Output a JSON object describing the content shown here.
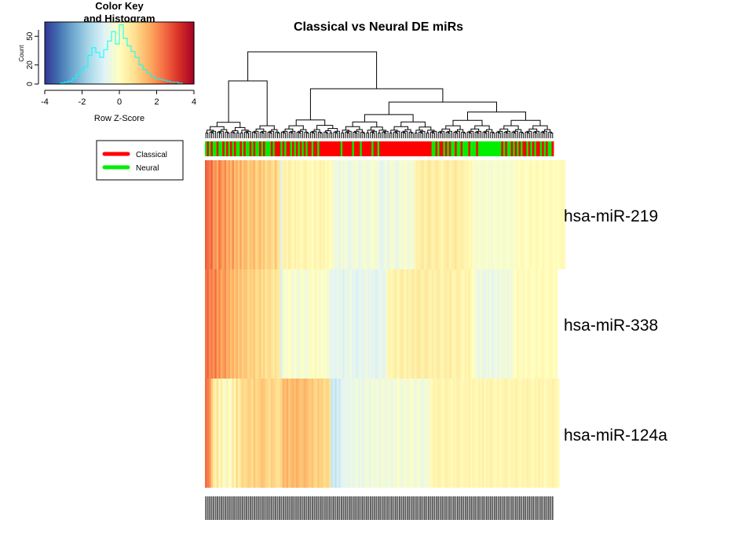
{
  "chart_data": {
    "type": "heatmap",
    "title": "Classical vs Neural DE miRs",
    "rows": [
      "hsa-miR-219",
      "hsa-miR-338",
      "hsa-miR-124a"
    ],
    "legend": {
      "position": "top-left",
      "entries": [
        {
          "label": "Classical",
          "color": "#ff0000"
        },
        {
          "label": "Neural",
          "color": "#00ee00"
        }
      ]
    },
    "color_key": {
      "title_line1": "Color Key",
      "title_line2": "and Histogram",
      "xlabel": "Row Z-Score",
      "ylabel": "Count",
      "xlim": [
        -4,
        4
      ],
      "x_ticks": [
        "-4",
        "-2",
        "0",
        "2",
        "4"
      ],
      "y_ticks": [
        "0",
        "20",
        "50"
      ],
      "palette": [
        "#313695",
        "#4575b4",
        "#74add1",
        "#abd9e9",
        "#e0f3f8",
        "#ffffbf",
        "#fee090",
        "#fdae61",
        "#f46d43",
        "#d73027",
        "#a50026"
      ],
      "histogram_color": "#00ffff",
      "histogram": [
        0,
        0,
        0,
        0,
        1,
        2,
        3,
        6,
        10,
        15,
        18,
        30,
        38,
        33,
        28,
        36,
        45,
        55,
        42,
        62,
        48,
        40,
        34,
        28,
        20,
        15,
        11,
        8,
        6,
        5,
        4,
        3,
        2,
        2,
        1,
        0,
        0,
        0
      ]
    },
    "column_groups": [
      "Neural",
      "Classical",
      "Neural",
      "Classical",
      "Neural",
      "Neural",
      "Classical",
      "Neural",
      "Neural",
      "Classical",
      "Neural",
      "Classical",
      "Neural",
      "Classical",
      "Neural",
      "Classical",
      "Neural",
      "Neural",
      "Classical",
      "Neural",
      "Classical",
      "Neural",
      "Neural",
      "Classical",
      "Neural",
      "Classical",
      "Neural",
      "Neural",
      "Classical",
      "Neural",
      "Classical",
      "Neural",
      "Neural",
      "Neural",
      "Classical",
      "Neural",
      "Classical",
      "Classical",
      "Classical",
      "Neural",
      "Classical",
      "Neural",
      "Classical",
      "Classical",
      "Neural",
      "Classical",
      "Neural",
      "Classical",
      "Neural",
      "Classical",
      "Neural",
      "Classical",
      "Neural",
      "Classical",
      "Classical",
      "Neural",
      "Classical",
      "Classical",
      "Neural",
      "Classical",
      "Classical",
      "Classical",
      "Classical",
      "Classical",
      "Classical",
      "Classical",
      "Classical",
      "Classical",
      "Classical",
      "Classical",
      "Neural",
      "Classical",
      "Classical",
      "Classical",
      "Classical",
      "Classical",
      "Neural",
      "Classical",
      "Classical",
      "Classical",
      "Neural",
      "Classical",
      "Classical",
      "Classical",
      "Classical",
      "Classical",
      "Neural",
      "Classical",
      "Classical",
      "Neural",
      "Classical",
      "Classical",
      "Classical",
      "Classical",
      "Classical",
      "Classical",
      "Classical",
      "Classical",
      "Classical",
      "Classical",
      "Classical",
      "Classical",
      "Classical",
      "Classical",
      "Classical",
      "Classical",
      "Classical",
      "Classical",
      "Classical",
      "Classical",
      "Classical",
      "Classical",
      "Classical",
      "Classical",
      "Classical",
      "Classical",
      "Classical",
      "Neural",
      "Neural",
      "Classical",
      "Neural",
      "Classical",
      "Classical",
      "Neural",
      "Classical",
      "Neural",
      "Classical",
      "Neural",
      "Neural",
      "Classical",
      "Neural",
      "Neural",
      "Classical",
      "Neural",
      "Neural",
      "Neural",
      "Classical",
      "Neural",
      "Neural",
      "Neural",
      "Classical",
      "Neural",
      "Neural",
      "Neural",
      "Neural",
      "Neural",
      "Neural",
      "Neural",
      "Neural",
      "Neural",
      "Neural",
      "Neural",
      "Neural",
      "Classical",
      "Neural",
      "Classical",
      "Neural",
      "Neural",
      "Classical",
      "Neural",
      "Classical",
      "Neural",
      "Classical",
      "Neural",
      "Classical",
      "Classical",
      "Neural",
      "Classical",
      "Neural",
      "Classical",
      "Neural",
      "Classical",
      "Classical",
      "Neural",
      "Classical",
      "Neural",
      "Classical",
      "Neural",
      "Neural",
      "Classical"
    ],
    "z_scores": [
      [
        2.6,
        2.4,
        2.2,
        2.5,
        1.8,
        2.0,
        1.6,
        2.3,
        1.9,
        1.7,
        2.1,
        1.5,
        1.8,
        1.4,
        2.0,
        1.3,
        1.6,
        1.2,
        1.7,
        1.1,
        1.5,
        1.4,
        1.0,
        1.3,
        1.2,
        1.5,
        0.9,
        1.1,
        1.4,
        1.0,
        1.2,
        0.8,
        1.0,
        1.1,
        0.9,
        0.7,
        1.3,
        0.8,
        0.6,
        -0.8,
        0.3,
        0.4,
        0.2,
        0.5,
        0.3,
        0.1,
        0.4,
        0.2,
        0.3,
        0.1,
        0.2,
        0.4,
        0.3,
        0.1,
        0.2,
        0.0,
        0.3,
        0.2,
        0.1,
        0.4,
        0.2,
        0.3,
        0.1,
        0.2,
        0.0,
        0.1,
        -0.3,
        -0.5,
        -0.4,
        -0.6,
        -0.3,
        -0.5,
        -0.2,
        -0.4,
        -0.7,
        -0.5,
        -0.3,
        -0.4,
        -0.2,
        -0.6,
        -0.5,
        -0.3,
        -0.2,
        -0.4,
        -0.5,
        -0.3,
        -0.1,
        -0.2,
        -0.4,
        -0.3,
        -0.6,
        -0.8,
        -0.5,
        -0.3,
        -0.7,
        -0.4,
        -0.2,
        -0.3,
        -0.5,
        -0.6,
        -0.3,
        -0.2,
        -0.4,
        -0.1,
        -0.3,
        -0.5,
        -0.2,
        -0.4,
        0.2,
        0.4,
        0.3,
        0.5,
        0.6,
        0.3,
        0.4,
        0.7,
        0.5,
        0.3,
        0.4,
        0.6,
        0.5,
        0.3,
        0.2,
        0.4,
        0.5,
        0.6,
        0.3,
        0.4,
        0.5,
        0.7,
        0.4,
        0.3,
        0.5,
        0.4,
        0.2,
        0.3,
        0.1,
        0.2,
        -0.1,
        -0.2,
        -0.3,
        -0.1,
        -0.2,
        -0.3,
        -0.2,
        -0.1,
        -0.3,
        -0.2,
        -0.4,
        -0.1,
        -0.2,
        -0.3,
        -0.1,
        -0.2,
        -0.3,
        -0.2,
        -0.1,
        -0.2,
        -0.3,
        -0.1,
        -0.2,
        0.1,
        0.0,
        0.2,
        0.1,
        0.0,
        -0.1,
        0.1,
        0.2,
        0.0,
        0.1,
        0.2,
        0.1,
        0.0,
        0.2,
        0.1,
        0.0,
        0.1,
        0.2,
        0.1,
        0.0,
        0.1,
        0.0,
        0.1,
        0.2,
        0.1
      ],
      [
        2.3,
        2.5,
        2.0,
        2.2,
        1.9,
        2.4,
        1.7,
        2.1,
        1.6,
        1.8,
        2.0,
        1.5,
        1.7,
        1.3,
        1.6,
        1.2,
        1.5,
        1.1,
        1.4,
        1.0,
        1.3,
        1.2,
        0.9,
        1.1,
        1.0,
        1.2,
        0.8,
        0.9,
        1.1,
        0.7,
        1.0,
        0.6,
        0.8,
        0.9,
        0.7,
        0.5,
        0.8,
        0.6,
        0.5,
        -0.9,
        -0.2,
        -0.1,
        -0.3,
        0.0,
        -0.2,
        -0.4,
        -0.1,
        -0.3,
        -0.5,
        -0.2,
        -0.1,
        -0.3,
        -0.4,
        -0.2,
        0.1,
        -0.1,
        -0.2,
        0.2,
        -0.1,
        -0.3,
        0.0,
        -0.2,
        -0.1,
        -0.3,
        -0.5,
        -0.7,
        -0.6,
        -0.8,
        -0.5,
        -0.7,
        -0.6,
        -0.9,
        -0.5,
        -0.7,
        -0.6,
        -0.4,
        -0.8,
        -0.6,
        -0.9,
        -0.7,
        -0.5,
        -0.8,
        -0.6,
        -0.4,
        -0.7,
        -0.5,
        -0.8,
        -0.6,
        -0.9,
        -0.7,
        -0.5,
        -0.6,
        -0.8,
        -0.4,
        0.2,
        0.3,
        0.1,
        0.4,
        0.5,
        0.2,
        0.3,
        0.6,
        0.4,
        0.2,
        0.5,
        0.3,
        0.4,
        0.6,
        0.3,
        0.5,
        0.7,
        0.4,
        0.3,
        0.5,
        0.6,
        0.4,
        0.2,
        0.5,
        0.3,
        0.4,
        0.6,
        0.3,
        0.2,
        0.4,
        0.5,
        0.3,
        0.6,
        0.4,
        0.2,
        0.3,
        0.5,
        0.4,
        0.2,
        0.1,
        0.3,
        0.2,
        0.4,
        0.1,
        0.0,
        -0.2,
        -0.4,
        -0.6,
        -0.3,
        -0.5,
        -0.7,
        -0.4,
        -0.6,
        -0.3,
        -0.8,
        -0.5,
        -0.4,
        -0.6,
        -0.3,
        -0.5,
        -0.4,
        -0.2,
        -0.6,
        -0.3,
        -0.4,
        -0.1,
        0.0,
        0.2,
        0.1,
        -0.1,
        0.2,
        0.0,
        0.1,
        0.2,
        0.0,
        -0.1,
        0.1,
        0.2,
        0.0,
        0.1,
        0.2,
        0.1,
        0.0,
        0.1,
        0.2,
        0.1,
        0.0,
        0.1
      ],
      [
        2.4,
        2.2,
        2.0,
        1.2,
        0.6,
        0.3,
        0.8,
        -0.2,
        0.5,
        0.1,
        -0.3,
        0.4,
        0.0,
        -0.2,
        0.6,
        0.2,
        0.9,
        0.4,
        0.7,
        1.0,
        0.8,
        0.9,
        1.1,
        1.0,
        0.8,
        1.2,
        0.9,
        1.0,
        1.1,
        1.3,
        1.2,
        1.0,
        0.9,
        0.8,
        1.1,
        1.0,
        0.9,
        0.7,
        0.8,
        1.0,
        1.5,
        1.3,
        1.6,
        1.2,
        1.4,
        1.5,
        1.3,
        1.6,
        1.4,
        1.2,
        1.3,
        1.5,
        1.4,
        1.2,
        1.1,
        1.3,
        1.0,
        0.9,
        1.2,
        1.0,
        1.1,
        0.8,
        0.9,
        1.0,
        0.7,
        -1.2,
        -1.0,
        -1.3,
        -0.9,
        -1.1,
        -0.8,
        -0.6,
        -0.7,
        -0.5,
        -0.8,
        -0.4,
        -0.6,
        -0.5,
        -0.3,
        -0.7,
        -0.4,
        -0.6,
        -0.5,
        -0.3,
        -0.4,
        -0.6,
        -0.2,
        -0.5,
        -0.3,
        -0.4,
        -0.6,
        -0.2,
        -0.3,
        -0.5,
        -0.4,
        -0.2,
        -0.6,
        -0.3,
        -0.4,
        -0.1,
        -0.2,
        -0.5,
        -0.3,
        -0.2,
        -0.4,
        -0.3,
        -0.1,
        -0.2,
        -0.5,
        -0.3,
        -0.2,
        -0.4,
        -0.6,
        -0.3,
        -0.2,
        -0.4,
        0.1,
        0.2,
        0.3,
        0.2,
        0.4,
        0.3,
        0.1,
        0.2,
        0.4,
        0.3,
        0.2,
        0.1,
        0.3,
        0.2,
        0.4,
        0.3,
        0.1,
        0.2,
        0.3,
        0.2,
        0.4,
        0.1,
        0.3,
        0.2,
        0.1,
        0.3,
        0.2,
        0.4,
        0.1,
        0.3,
        0.2,
        0.4,
        0.3,
        0.1,
        0.2,
        0.3,
        0.1,
        0.2,
        0.3,
        0.4,
        0.2,
        0.1,
        0.3,
        0.2,
        0.4,
        0.3,
        0.1,
        0.2,
        0.3,
        0.2,
        0.4,
        0.3,
        0.2,
        0.1,
        0.3,
        0.2,
        0.4,
        0.2,
        0.3,
        0.1,
        0.2,
        0.3,
        0.2,
        0.4,
        0.3,
        0.2,
        0.1
      ]
    ]
  }
}
